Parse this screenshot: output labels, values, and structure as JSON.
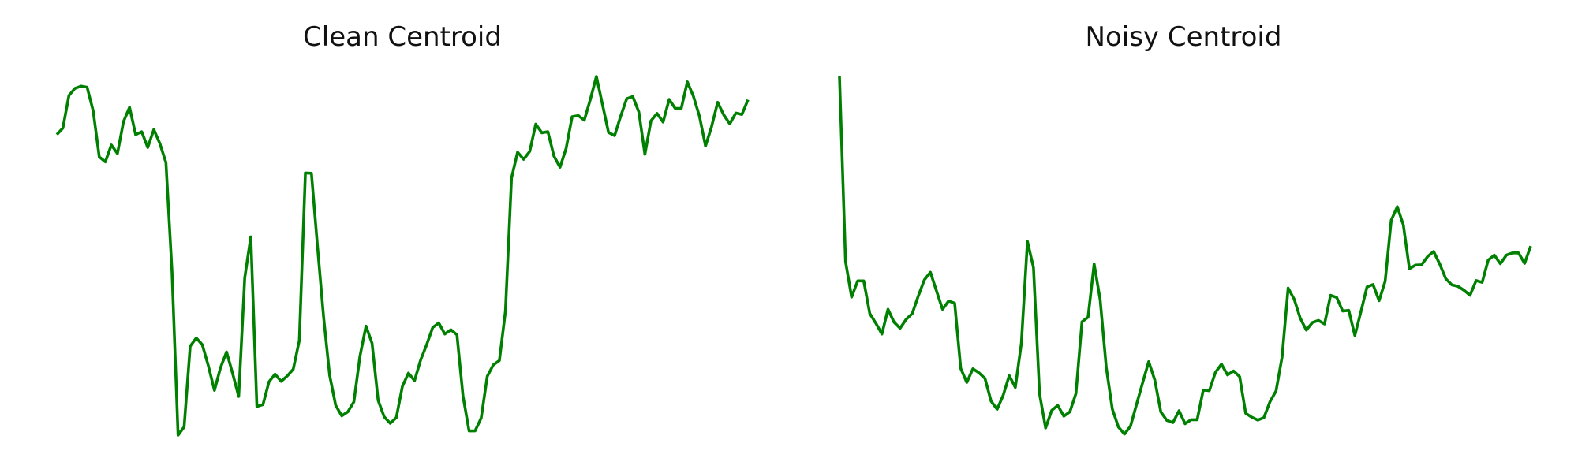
{
  "line_color": "#008000",
  "chart_data": [
    {
      "type": "line",
      "title": "Clean Centroid",
      "xlabel": "",
      "ylabel": "",
      "axes": "off",
      "grid": false,
      "series": [
        {
          "values": [
            0.838,
            0.856,
            0.947,
            0.967,
            0.973,
            0.97,
            0.904,
            0.776,
            0.762,
            0.809,
            0.785,
            0.874,
            0.914,
            0.838,
            0.846,
            0.802,
            0.852,
            0.813,
            0.76,
            0.456,
            0.0,
            0.023,
            0.248,
            0.271,
            0.252,
            0.193,
            0.125,
            0.188,
            0.232,
            0.172,
            0.108,
            0.439,
            0.553,
            0.08,
            0.085,
            0.149,
            0.17,
            0.15,
            0.165,
            0.184,
            0.264,
            0.731,
            0.73,
            0.526,
            0.33,
            0.167,
            0.083,
            0.054,
            0.065,
            0.093,
            0.22,
            0.304,
            0.256,
            0.097,
            0.051,
            0.033,
            0.049,
            0.136,
            0.173,
            0.152,
            0.209,
            0.252,
            0.3,
            0.313,
            0.282,
            0.294,
            0.28,
            0.109,
            0.012,
            0.012,
            0.048,
            0.164,
            0.196,
            0.208,
            0.346,
            0.717,
            0.789,
            0.769,
            0.791,
            0.867,
            0.843,
            0.846,
            0.778,
            0.747,
            0.799,
            0.888,
            0.891,
            0.878,
            0.936,
            1.0,
            0.922,
            0.844,
            0.835,
            0.889,
            0.938,
            0.944,
            0.901,
            0.783,
            0.876,
            0.897,
            0.873,
            0.936,
            0.911,
            0.911,
            0.985,
            0.945,
            0.889,
            0.806,
            0.86,
            0.928,
            0.893,
            0.868,
            0.898,
            0.894,
            0.935
          ]
        }
      ]
    },
    {
      "type": "line",
      "title": "Noisy Centroid",
      "xlabel": "",
      "ylabel": "",
      "axes": "off",
      "grid": false,
      "series": [
        {
          "values": [
            1.0,
            0.484,
            0.385,
            0.43,
            0.43,
            0.339,
            0.312,
            0.282,
            0.351,
            0.315,
            0.298,
            0.323,
            0.339,
            0.388,
            0.433,
            0.454,
            0.402,
            0.351,
            0.374,
            0.368,
            0.186,
            0.147,
            0.185,
            0.174,
            0.158,
            0.095,
            0.072,
            0.111,
            0.166,
            0.133,
            0.256,
            0.54,
            0.467,
            0.115,
            0.02,
            0.069,
            0.083,
            0.053,
            0.065,
            0.116,
            0.316,
            0.329,
            0.477,
            0.377,
            0.189,
            0.073,
            0.023,
            0.003,
            0.025,
            0.086,
            0.146,
            0.205,
            0.154,
            0.065,
            0.041,
            0.035,
            0.068,
            0.032,
            0.043,
            0.043,
            0.126,
            0.124,
            0.175,
            0.198,
            0.168,
            0.179,
            0.163,
            0.061,
            0.05,
            0.042,
            0.049,
            0.093,
            0.123,
            0.218,
            0.41,
            0.379,
            0.326,
            0.293,
            0.314,
            0.32,
            0.31,
            0.39,
            0.384,
            0.346,
            0.348,
            0.278,
            0.344,
            0.413,
            0.42,
            0.375,
            0.429,
            0.599,
            0.637,
            0.586,
            0.464,
            0.474,
            0.475,
            0.498,
            0.512,
            0.477,
            0.436,
            0.419,
            0.415,
            0.404,
            0.39,
            0.431,
            0.426,
            0.488,
            0.502,
            0.478,
            0.502,
            0.508,
            0.508,
            0.479,
            0.527
          ]
        }
      ]
    }
  ]
}
